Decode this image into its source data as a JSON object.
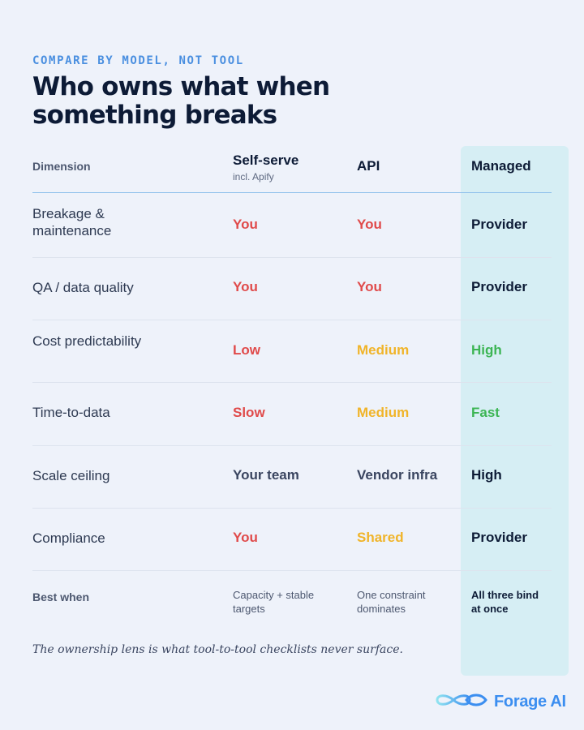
{
  "header": {
    "eyebrow": "COMPARE BY MODEL, NOT TOOL",
    "title": "Who owns what when something breaks"
  },
  "table": {
    "columns": {
      "dimension": "Dimension",
      "self_serve": {
        "label": "Self-serve",
        "sub": "incl. Apify"
      },
      "api": {
        "label": "API"
      },
      "managed": {
        "label": "Managed"
      }
    },
    "rows": [
      {
        "dimension": "Breakage & maintenance",
        "self_serve": "You",
        "api": "You",
        "managed": "Provider"
      },
      {
        "dimension": "QA / data quality",
        "self_serve": "You",
        "api": "You",
        "managed": "Provider"
      },
      {
        "dimension": "Cost predictability",
        "self_serve": "Low",
        "api": "Medium",
        "managed": "High"
      },
      {
        "dimension": "Time-to-data",
        "self_serve": "Slow",
        "api": "Medium",
        "managed": "Fast"
      },
      {
        "dimension": "Scale ceiling",
        "self_serve": "Your team",
        "api": "Vendor infra",
        "managed": "High"
      },
      {
        "dimension": "Compliance",
        "self_serve": "You",
        "api": "Shared",
        "managed": "Provider"
      }
    ],
    "best_when": {
      "label": "Best when",
      "self_serve": "Capacity + stable targets",
      "api": "One constraint dominates",
      "managed": "All three bind at once"
    }
  },
  "footnote": "The ownership lens is what tool-to-tool checklists never surface.",
  "brand": {
    "name": "Forage AI",
    "icon": "infinity-logo-icon"
  },
  "colors": {
    "accent": "#4a8fe0",
    "red": "#e04a4a",
    "amber": "#f0b429",
    "green": "#3cb554",
    "managed_bg": "#d6eef4"
  }
}
